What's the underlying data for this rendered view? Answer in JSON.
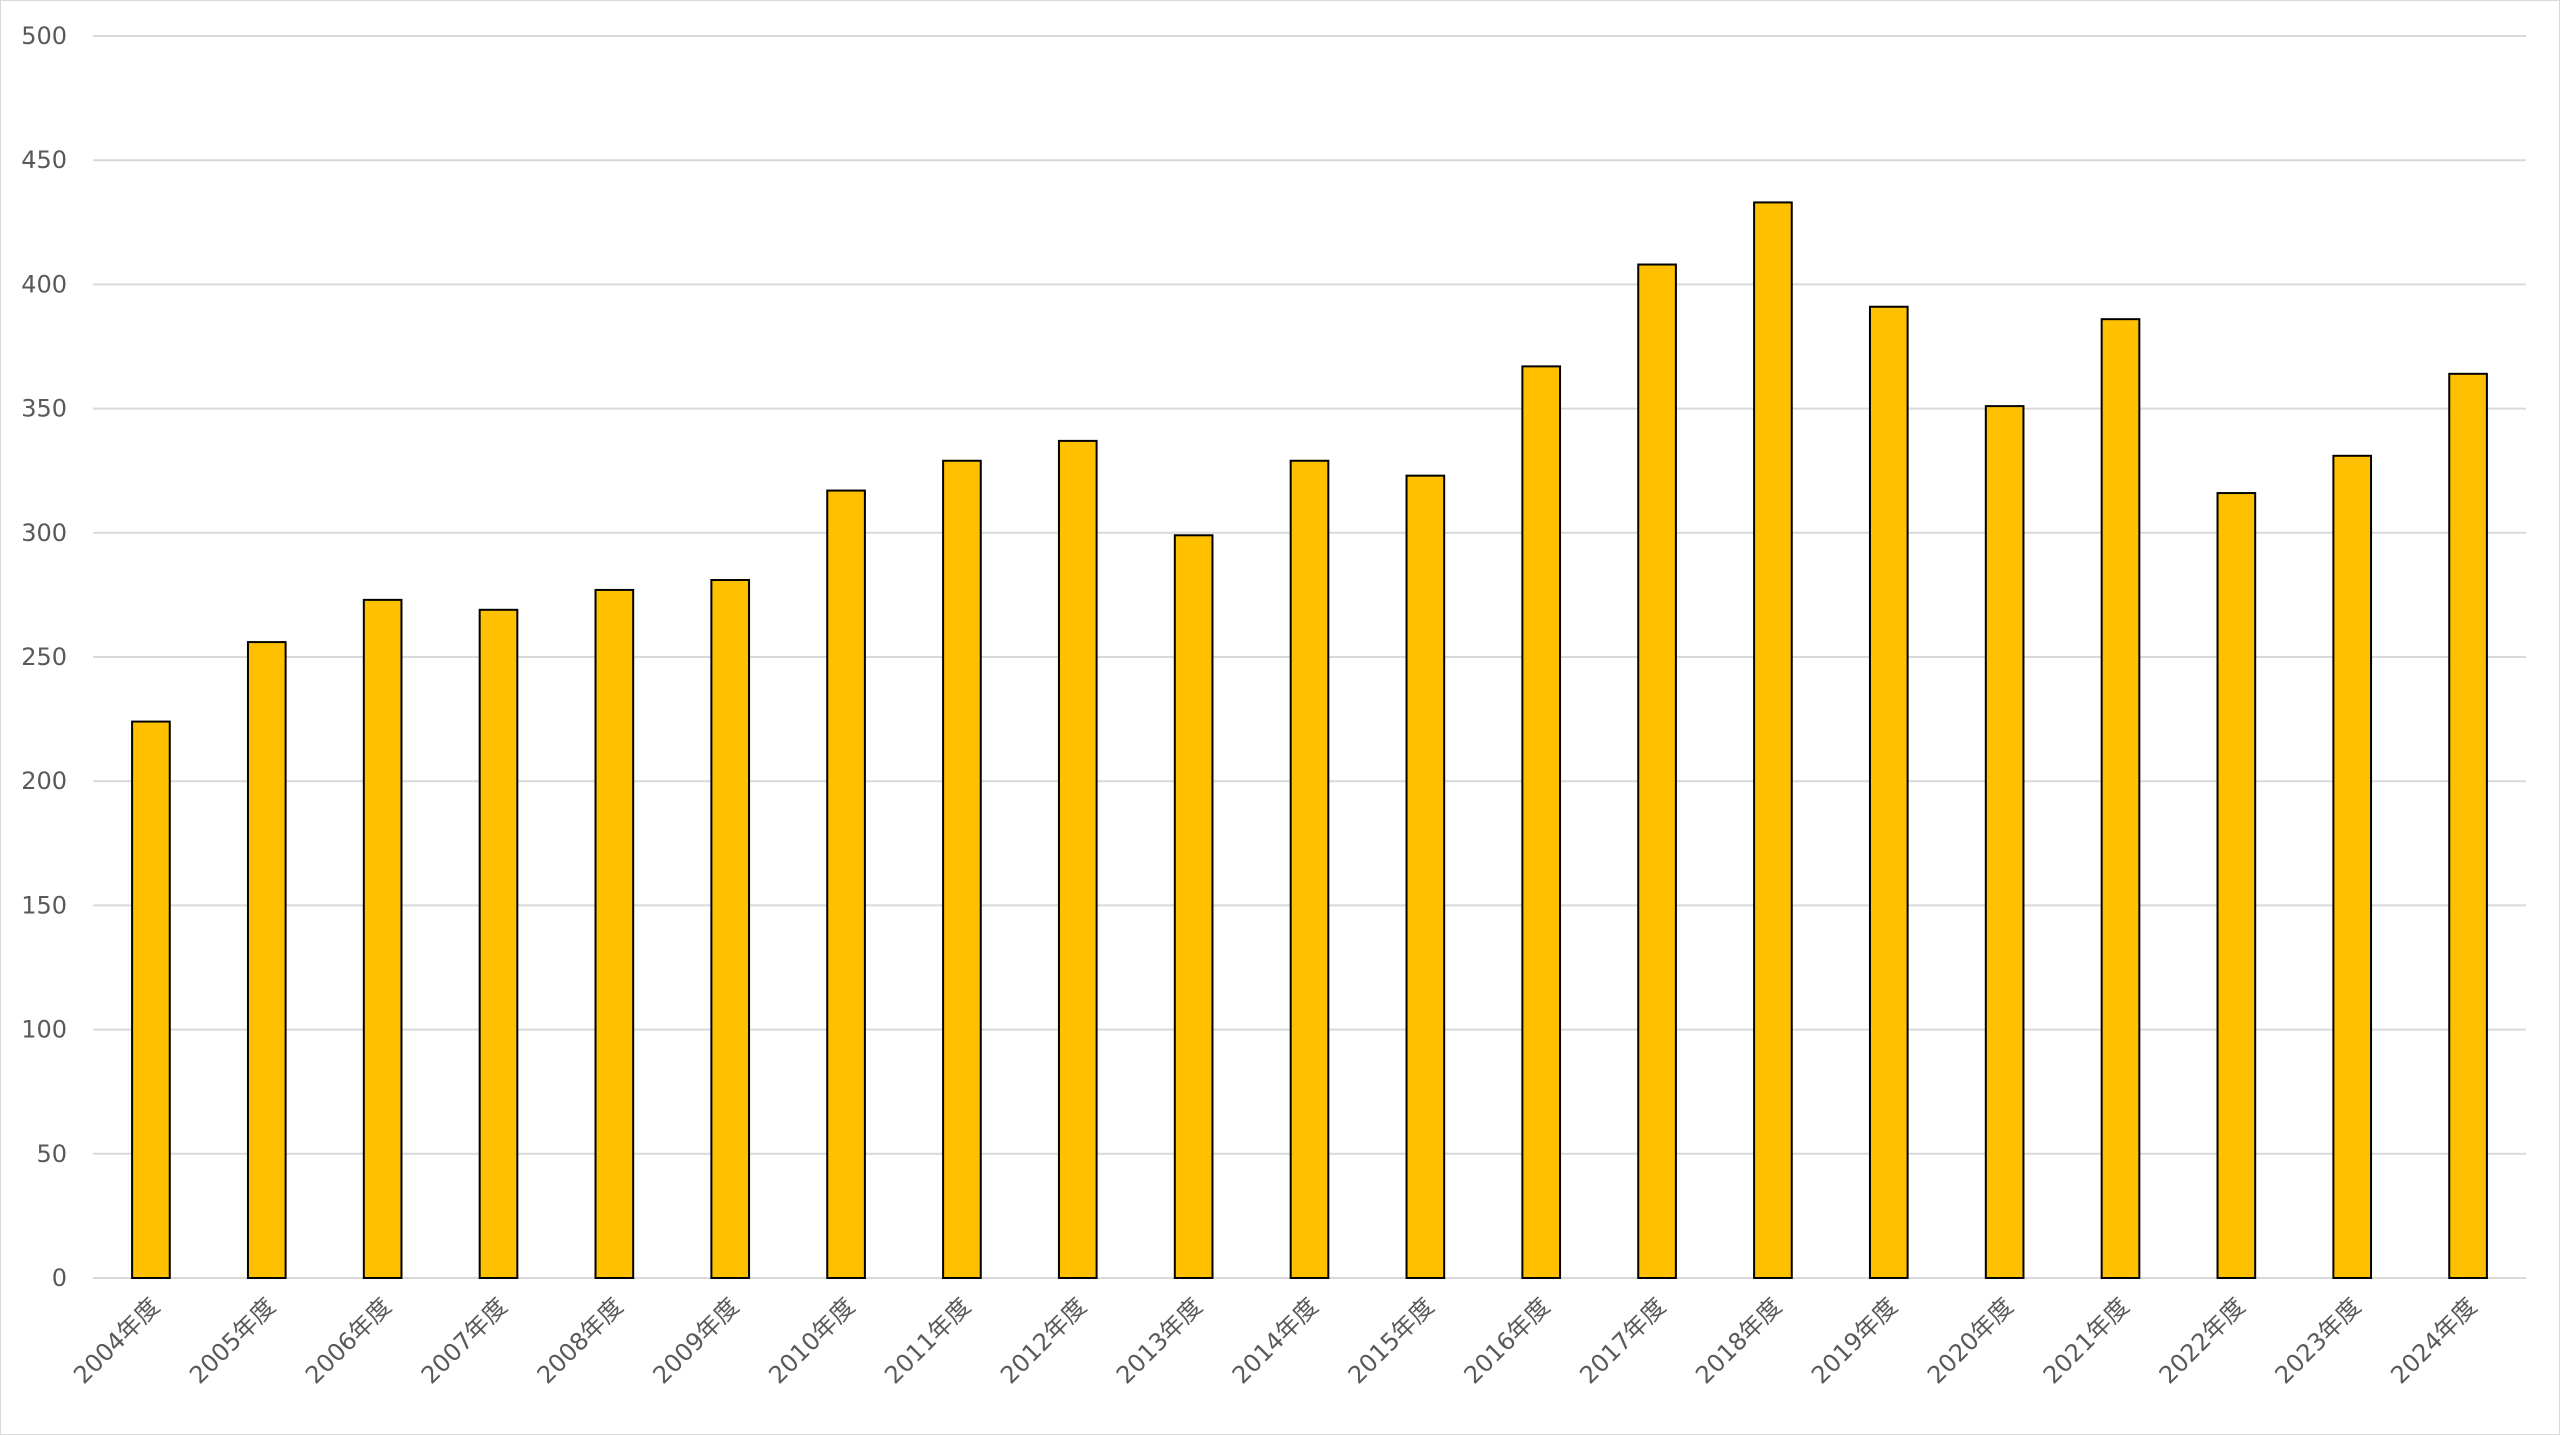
{
  "chart_data": {
    "type": "bar",
    "title": "",
    "xlabel": "",
    "ylabel": "",
    "categories": [
      "2004年度",
      "2005年度",
      "2006年度",
      "2007年度",
      "2008年度",
      "2009年度",
      "2010年度",
      "2011年度",
      "2012年度",
      "2013年度",
      "2014年度",
      "2015年度",
      "2016年度",
      "2017年度",
      "2018年度",
      "2019年度",
      "2020年度",
      "2021年度",
      "2022年度",
      "2023年度",
      "2024年度"
    ],
    "values": [
      224,
      256,
      273,
      269,
      277,
      281,
      317,
      329,
      337,
      299,
      329,
      323,
      367,
      408,
      433,
      391,
      351,
      386,
      316,
      331,
      364
    ],
    "ylim": [
      0,
      500
    ],
    "yticks": [
      "0",
      "50",
      "100",
      "150",
      "200",
      "250",
      "300",
      "350",
      "400",
      "450",
      "500"
    ],
    "grid": true,
    "legend": "none",
    "bar_color": "#FFC000",
    "bar_edge_color": "#000000"
  }
}
